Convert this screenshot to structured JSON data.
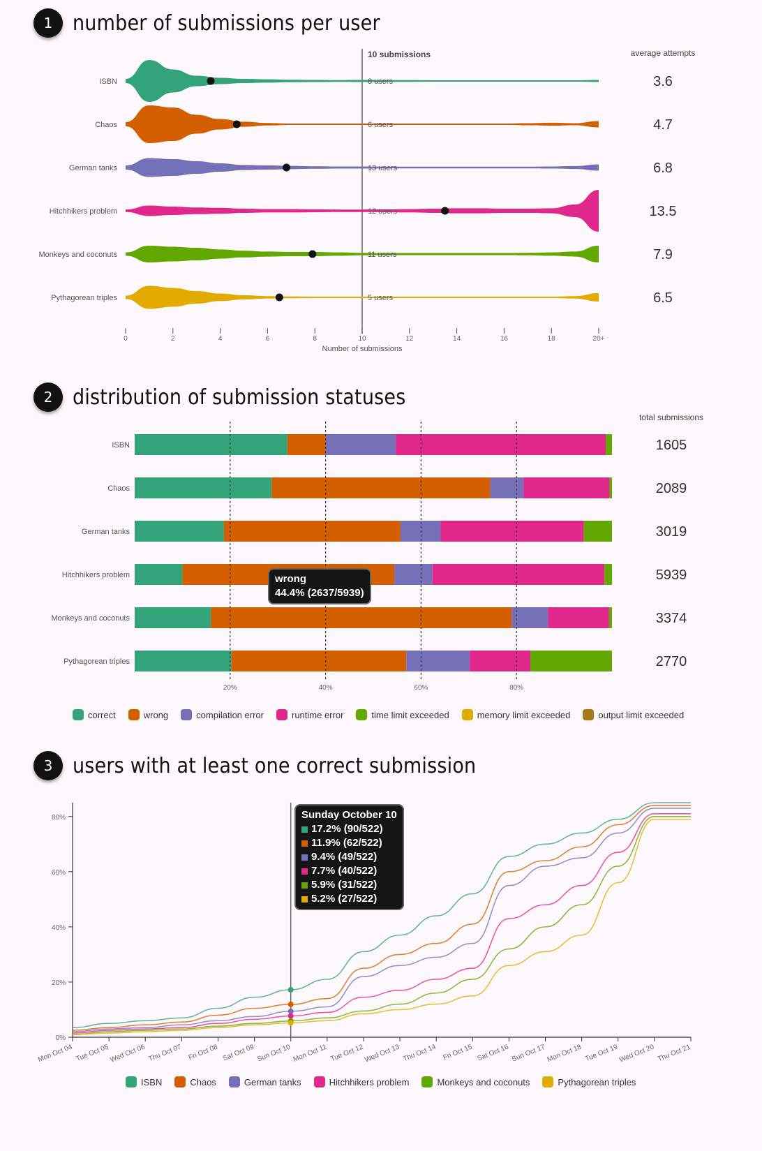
{
  "sections": [
    {
      "number": "1",
      "title": "number of submissions per user"
    },
    {
      "number": "2",
      "title": "distribution of submission statuses"
    },
    {
      "number": "3",
      "title": "users with at least one correct submission"
    }
  ],
  "colors": {
    "ISBN": "#33a37a",
    "Chaos": "#d35f00",
    "German tanks": "#7570b8",
    "Hitchhikers problem": "#e0288a",
    "Monkeys and coconuts": "#63a800",
    "Pythagorean triples": "#e3ab00",
    "output": "#a6791a"
  },
  "chart_data": [
    {
      "type": "violin",
      "xlabel": "Number of submissions",
      "x_ticks": [
        "0",
        "2",
        "4",
        "6",
        "8",
        "10",
        "12",
        "14",
        "16",
        "18",
        "20+"
      ],
      "xlim": [
        0,
        20
      ],
      "marker_label": "10 submissions",
      "marker_x": 10,
      "value_column_header": "average attempts",
      "series": [
        {
          "name": "ISBN",
          "mean": 3.6,
          "users_label": "8 users",
          "average_attempts": "3.6",
          "density": [
            0.1,
            1.0,
            0.55,
            0.25,
            0.15,
            0.1,
            0.08,
            0.06,
            0.05,
            0.04,
            0.05,
            0.04,
            0.04,
            0.03,
            0.03,
            0.03,
            0.03,
            0.03,
            0.03,
            0.03,
            0.05
          ]
        },
        {
          "name": "Chaos",
          "mean": 4.7,
          "users_label": "6 users",
          "average_attempts": "4.7",
          "density": [
            0.1,
            0.9,
            0.8,
            0.45,
            0.25,
            0.12,
            0.06,
            0.03,
            0.03,
            0.03,
            0.03,
            0.03,
            0.03,
            0.03,
            0.03,
            0.03,
            0.03,
            0.05,
            0.07,
            0.05,
            0.15
          ]
        },
        {
          "name": "German tanks",
          "mean": 6.8,
          "users_label": "13 users",
          "average_attempts": "6.8",
          "density": [
            0.1,
            0.45,
            0.4,
            0.3,
            0.2,
            0.12,
            0.1,
            0.08,
            0.06,
            0.05,
            0.05,
            0.04,
            0.04,
            0.04,
            0.04,
            0.04,
            0.04,
            0.04,
            0.05,
            0.07,
            0.15
          ]
        },
        {
          "name": "Hitchhikers problem",
          "mean": 13.5,
          "users_label": "12 users",
          "average_attempts": "13.5",
          "density": [
            0.06,
            0.25,
            0.2,
            0.16,
            0.14,
            0.1,
            0.08,
            0.08,
            0.07,
            0.06,
            0.06,
            0.07,
            0.08,
            0.1,
            0.12,
            0.12,
            0.1,
            0.1,
            0.12,
            0.3,
            1.0
          ]
        },
        {
          "name": "Monkeys and coconuts",
          "mean": 7.9,
          "users_label": "11 users",
          "average_attempts": "7.9",
          "density": [
            0.08,
            0.4,
            0.35,
            0.3,
            0.22,
            0.16,
            0.12,
            0.1,
            0.1,
            0.08,
            0.06,
            0.05,
            0.05,
            0.05,
            0.05,
            0.05,
            0.05,
            0.06,
            0.08,
            0.12,
            0.4
          ]
        },
        {
          "name": "Pythagorean triples",
          "mean": 6.5,
          "users_label": "5 users",
          "average_attempts": "6.5",
          "density": [
            0.08,
            0.55,
            0.45,
            0.3,
            0.18,
            0.1,
            0.06,
            0.04,
            0.03,
            0.03,
            0.03,
            0.03,
            0.03,
            0.03,
            0.03,
            0.03,
            0.03,
            0.03,
            0.03,
            0.06,
            0.2
          ]
        }
      ]
    },
    {
      "type": "bar",
      "orientation": "horizontal",
      "stacked": "percent",
      "x_ticks": [
        "20%",
        "40%",
        "60%",
        "80%"
      ],
      "value_column_header": "total submissions",
      "statuses": [
        "correct",
        "wrong",
        "compilation error",
        "runtime error",
        "time limit exceeded",
        "memory limit exceeded",
        "output limit exceeded"
      ],
      "status_colors": [
        "#33a37a",
        "#d35f00",
        "#7570b8",
        "#e0288a",
        "#63a800",
        "#e3ab00",
        "#a6791a"
      ],
      "rows": [
        {
          "name": "ISBN",
          "total": "1605",
          "percents": [
            32,
            8,
            14.7,
            44,
            1.3,
            0,
            0
          ]
        },
        {
          "name": "Chaos",
          "total": "2089",
          "percents": [
            28.7,
            45.8,
            7,
            18,
            0.5,
            0,
            0
          ]
        },
        {
          "name": "German tanks",
          "total": "3019",
          "percents": [
            18.7,
            37,
            8.4,
            30,
            5.9,
            0,
            0
          ]
        },
        {
          "name": "Hitchhikers problem",
          "total": "5939",
          "percents": [
            10,
            44.4,
            8,
            36,
            1.6,
            0,
            0
          ]
        },
        {
          "name": "Monkeys and coconuts",
          "total": "3374",
          "percents": [
            16,
            63,
            7.6,
            12.8,
            0.6,
            0,
            0
          ]
        },
        {
          "name": "Pythagorean triples",
          "total": "2770",
          "percents": [
            20.3,
            36.6,
            13.3,
            12.7,
            17.1,
            0,
            0
          ]
        }
      ],
      "tooltip": {
        "title": "wrong",
        "value": "44.4% (2637/5939)"
      }
    },
    {
      "type": "line",
      "y_ticks": [
        "0%",
        "20%",
        "40%",
        "60%",
        "80%"
      ],
      "ylim": [
        0,
        85
      ],
      "categories": [
        "Mon Oct 04",
        "Tue Oct 05",
        "Wed Oct 06",
        "Thu Oct 07",
        "Fri Oct 08",
        "Sat Oct 09",
        "Sun Oct 10",
        "Mon Oct 11",
        "Tue Oct 12",
        "Wed Oct 13",
        "Thu Oct 14",
        "Fri Oct 15",
        "Sat Oct 16",
        "Sun Oct 17",
        "Mon Oct 18",
        "Tue Oct 19",
        "Wed Oct 20",
        "Thu Oct 21"
      ],
      "series": [
        {
          "name": "ISBN",
          "values": [
            3.5,
            5,
            6,
            7,
            10.5,
            14.5,
            17.2,
            21,
            31,
            37,
            44,
            52,
            65.5,
            70,
            74,
            79,
            85,
            85
          ]
        },
        {
          "name": "Chaos",
          "values": [
            2.5,
            3.5,
            4.5,
            5.5,
            8,
            10.5,
            11.9,
            14,
            25,
            30,
            34,
            41,
            60,
            64,
            69,
            77,
            84,
            84
          ]
        },
        {
          "name": "German tanks",
          "values": [
            2,
            3,
            3.5,
            4.5,
            6,
            7.5,
            9.4,
            11,
            22,
            26,
            29,
            34,
            55,
            62,
            65,
            74,
            83,
            83
          ]
        },
        {
          "name": "Hitchhikers problem",
          "values": [
            1.5,
            2.5,
            3,
            3.5,
            5,
            6.5,
            7.7,
            9,
            14.5,
            17,
            21,
            25,
            43,
            48,
            55,
            67,
            81,
            81
          ]
        },
        {
          "name": "Monkeys and coconuts",
          "values": [
            1,
            2,
            2.5,
            3,
            4,
            5,
            5.9,
            7,
            9.5,
            12,
            16,
            21,
            32,
            40,
            48,
            62,
            80,
            80
          ]
        },
        {
          "name": "Pythagorean triples",
          "values": [
            1,
            1.5,
            2,
            2.5,
            3.5,
            4.5,
            5.2,
            6,
            8.5,
            10,
            12,
            15,
            26,
            31,
            37,
            56,
            79,
            79
          ]
        }
      ],
      "highlight_index": 6,
      "tooltip": {
        "title": "Sunday October 10",
        "lines": [
          "17.2% (90/522)",
          "11.9% (62/522)",
          "9.4% (49/522)",
          "7.7% (40/522)",
          "5.9% (31/522)",
          "5.2% (27/522)"
        ]
      }
    }
  ],
  "legend2": [
    "correct",
    "wrong",
    "compilation error",
    "runtime error",
    "time limit exceeded",
    "memory limit exceeded",
    "output limit exceeded"
  ],
  "legend3": [
    "ISBN",
    "Chaos",
    "German tanks",
    "Hitchhikers problem",
    "Monkeys and coconuts",
    "Pythagorean triples"
  ]
}
